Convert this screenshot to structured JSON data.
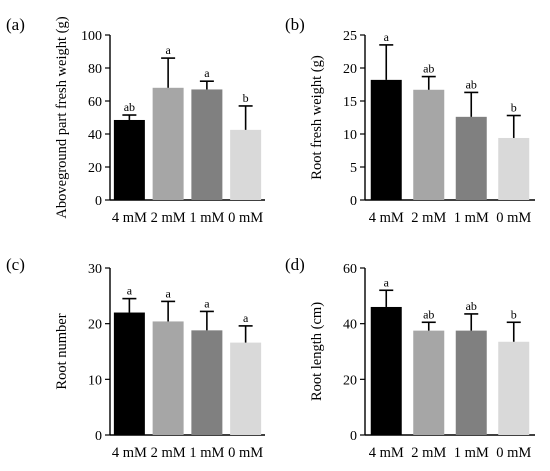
{
  "panel_order": [
    "a",
    "b",
    "c",
    "d"
  ],
  "panels": {
    "a": {
      "letter": "(a)"
    },
    "b": {
      "letter": "(b)"
    },
    "c": {
      "letter": "(c)"
    },
    "d": {
      "letter": "(d)"
    }
  },
  "colors": {
    "4 mM": "#000000",
    "2 mM": "#a6a6a6",
    "1 mM": "#808080",
    "0 mM": "#d9d9d9",
    "axis": "#000000"
  },
  "chart_data": [
    {
      "id": "a",
      "type": "bar",
      "title": "",
      "xlabel": "",
      "ylabel": "Aboveground part fresh weight (g)",
      "categories": [
        "4 mM",
        "2 mM",
        "1 mM",
        "0 mM"
      ],
      "values": [
        48.5,
        68,
        67,
        42.5
      ],
      "errors": [
        3,
        18,
        5,
        14.5
      ],
      "significance": [
        "ab",
        "a",
        "a",
        "b"
      ],
      "ylim": [
        0,
        100
      ],
      "yticks": [
        0,
        20,
        40,
        60,
        80,
        100
      ],
      "grid": false
    },
    {
      "id": "b",
      "type": "bar",
      "title": "",
      "xlabel": "",
      "ylabel": "Root fresh weight (g)",
      "categories": [
        "4 mM",
        "2 mM",
        "1 mM",
        "0 mM"
      ],
      "values": [
        18.2,
        16.7,
        12.6,
        9.4
      ],
      "errors": [
        5.3,
        2,
        3.7,
        3.4
      ],
      "significance": [
        "a",
        "ab",
        "ab",
        "b"
      ],
      "ylim": [
        0,
        25
      ],
      "yticks": [
        0,
        5,
        10,
        15,
        20,
        25
      ],
      "grid": false
    },
    {
      "id": "c",
      "type": "bar",
      "title": "",
      "xlabel": "",
      "ylabel": "Root number",
      "categories": [
        "4 mM",
        "2 mM",
        "1 mM",
        "0 mM"
      ],
      "values": [
        22,
        20.4,
        18.8,
        16.6
      ],
      "errors": [
        2.5,
        3.6,
        3.4,
        3
      ],
      "significance": [
        "a",
        "a",
        "a",
        "a"
      ],
      "ylim": [
        0,
        30
      ],
      "yticks": [
        0,
        10,
        20,
        30
      ],
      "grid": false
    },
    {
      "id": "d",
      "type": "bar",
      "title": "",
      "xlabel": "",
      "ylabel": "Root length (cm)",
      "categories": [
        "4 mM",
        "2 mM",
        "1 mM",
        "0 mM"
      ],
      "values": [
        46,
        37.5,
        37.5,
        33.5
      ],
      "errors": [
        6,
        3,
        6,
        7
      ],
      "significance": [
        "a",
        "ab",
        "ab",
        "b"
      ],
      "ylim": [
        0,
        60
      ],
      "yticks": [
        0,
        20,
        40,
        60
      ],
      "grid": false
    }
  ]
}
